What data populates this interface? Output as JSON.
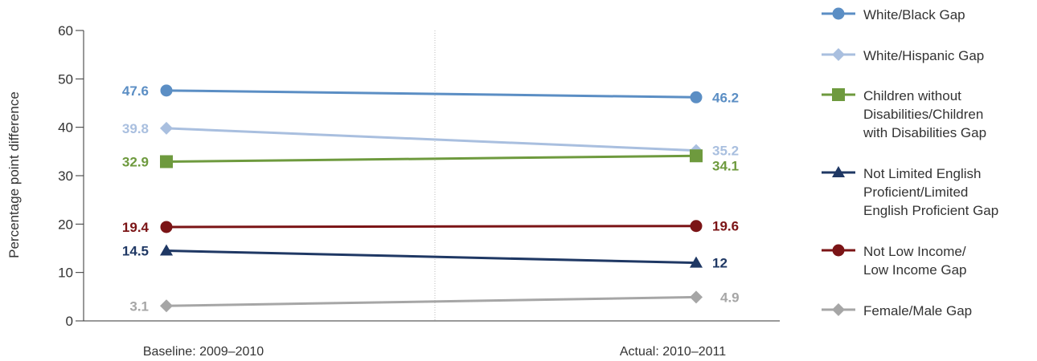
{
  "chart_data": {
    "type": "line",
    "ylabel": "Percentage point difference",
    "xlabel": "",
    "ylim": [
      0,
      60
    ],
    "yticks": [
      "0",
      "10",
      "20",
      "30",
      "40",
      "50",
      "60"
    ],
    "categories": [
      "Baseline: 2009–2010",
      "Actual: 2010–2011"
    ],
    "grid": false,
    "legend_position": "right",
    "series": [
      {
        "name": "White/Black Gap",
        "values": [
          47.6,
          46.2
        ],
        "labels": [
          "47.6",
          "46.2"
        ],
        "color": "#5b8ec4",
        "marker": "circle"
      },
      {
        "name": "White/Hispanic Gap",
        "values": [
          39.8,
          35.2
        ],
        "labels": [
          "39.8",
          "35.2"
        ],
        "color": "#a9bfdf",
        "marker": "diamond"
      },
      {
        "name": "Children without Disabilities/Children with Disabilities Gap",
        "values": [
          32.9,
          34.1
        ],
        "labels": [
          "32.9",
          "34.1"
        ],
        "color": "#6e9a3e",
        "marker": "square"
      },
      {
        "name": "Not Limited English Proficient/Limited English Proficient Gap",
        "values": [
          14.5,
          12
        ],
        "labels": [
          "14.5",
          "12"
        ],
        "color": "#1f3864",
        "marker": "triangle"
      },
      {
        "name": "Not Low Income/ Low Income Gap",
        "values": [
          19.4,
          19.6
        ],
        "labels": [
          "19.4",
          "19.6"
        ],
        "color": "#7b1416",
        "marker": "circle"
      },
      {
        "name": "Female/Male Gap",
        "values": [
          3.1,
          4.9
        ],
        "labels": [
          "3.1",
          "4.9"
        ],
        "color": "#a6a6a6",
        "marker": "diamond"
      }
    ]
  }
}
